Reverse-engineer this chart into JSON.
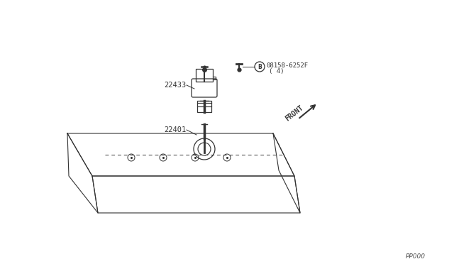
{
  "bg_color": "#ffffff",
  "line_color": "#333333",
  "text_color": "#333333",
  "label_22433": "22433",
  "label_22401": "22401",
  "label_bolt": "08158-6252F",
  "label_bolt2": "( 4)",
  "label_B": "B",
  "label_front": "FRONT",
  "label_pp": "PP000",
  "fig_width": 6.4,
  "fig_height": 3.72,
  "dpi": 100
}
